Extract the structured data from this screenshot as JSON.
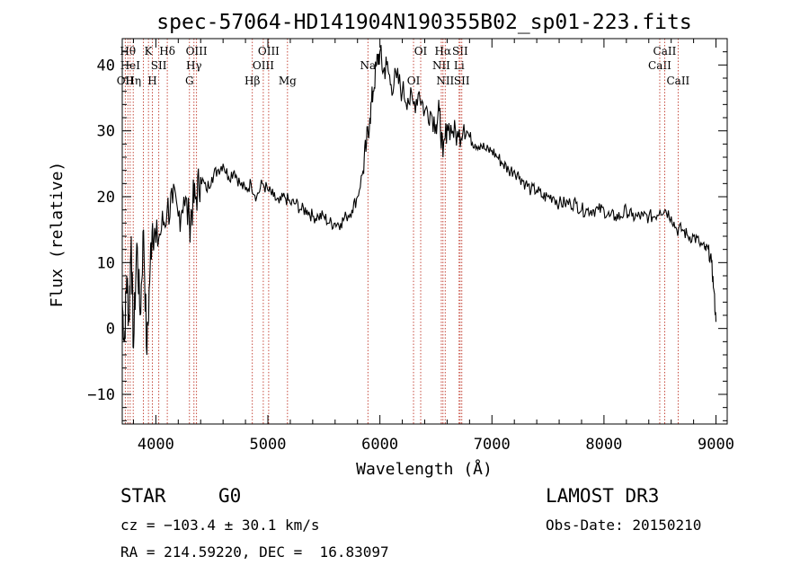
{
  "chart_data": {
    "type": "line",
    "title": "spec-57064-HD141904N190355B02_sp01-223.fits",
    "xlabel": "Wavelength (Å)",
    "ylabel": "Flux (relative)",
    "xlim": [
      3700,
      9100
    ],
    "ylim": [
      -14.5,
      44
    ],
    "xticks": [
      4000,
      5000,
      6000,
      7000,
      8000,
      9000
    ],
    "yticks": [
      -10,
      0,
      10,
      20,
      30,
      40
    ],
    "series": [
      {
        "name": "flux",
        "x": [
          3700,
          3720,
          3740,
          3760,
          3780,
          3800,
          3830,
          3860,
          3890,
          3920,
          3950,
          3970,
          4000,
          4050,
          4100,
          4150,
          4200,
          4250,
          4300,
          4330,
          4360,
          4400,
          4450,
          4500,
          4550,
          4600,
          4650,
          4700,
          4750,
          4800,
          4850,
          4900,
          4950,
          5000,
          5050,
          5100,
          5150,
          5200,
          5250,
          5300,
          5350,
          5400,
          5450,
          5500,
          5550,
          5600,
          5650,
          5700,
          5750,
          5800,
          5850,
          5880,
          5910,
          5940,
          5970,
          6000,
          6030,
          6060,
          6100,
          6150,
          6200,
          6250,
          6300,
          6350,
          6400,
          6450,
          6500,
          6530,
          6563,
          6600,
          6650,
          6700,
          6750,
          6800,
          6850,
          6900,
          6950,
          7000,
          7050,
          7100,
          7150,
          7200,
          7250,
          7300,
          7350,
          7400,
          7450,
          7500,
          7550,
          7600,
          7650,
          7700,
          7750,
          7800,
          7850,
          7900,
          7950,
          8000,
          8050,
          8100,
          8150,
          8200,
          8250,
          8300,
          8350,
          8400,
          8450,
          8500,
          8550,
          8600,
          8650,
          8700,
          8750,
          8800,
          8850,
          8900,
          8930,
          8960,
          8980,
          9000
        ],
        "y": [
          4,
          -2,
          8,
          1,
          14,
          -3,
          13,
          2,
          15,
          -4,
          10,
          16,
          13,
          15,
          18,
          19,
          17,
          20,
          16,
          19,
          20,
          23,
          21,
          23,
          24,
          25,
          23,
          24,
          22,
          21,
          22,
          20,
          22,
          21,
          20,
          19,
          20,
          19,
          19,
          18,
          18,
          17,
          17,
          17,
          16,
          16,
          16,
          17,
          18,
          20,
          24,
          28,
          32,
          36,
          40,
          42,
          39,
          40,
          37,
          38,
          36,
          35,
          34,
          36,
          33,
          33,
          31,
          33,
          26,
          31,
          30,
          29,
          31,
          29,
          28,
          28,
          27,
          27,
          26,
          25,
          24,
          24,
          23,
          22,
          21,
          21,
          20,
          20,
          20,
          19,
          19,
          19,
          19,
          18,
          18,
          18,
          18,
          18,
          17,
          17,
          17,
          18,
          17,
          17,
          17,
          17,
          17,
          18,
          18,
          17,
          15,
          15,
          14,
          14,
          13,
          12,
          12,
          10,
          6,
          1
        ]
      }
    ],
    "lines": [
      {
        "x": 3750,
        "label": "Hθ",
        "row": 1
      },
      {
        "x": 3771,
        "label": "HeI",
        "row": 2
      },
      {
        "x": 3727,
        "label": "OII",
        "row": 3
      },
      {
        "x": 3798,
        "label": "Hη",
        "row": 3
      },
      {
        "x": 3889,
        "label": "",
        "row": 0
      },
      {
        "x": 3934,
        "label": "K",
        "row": 1
      },
      {
        "x": 3969,
        "label": "H",
        "row": 3
      },
      {
        "x": 4026,
        "label": "SII",
        "row": 2
      },
      {
        "x": 4102,
        "label": "Hδ",
        "row": 1
      },
      {
        "x": 4300,
        "label": "G",
        "row": 3
      },
      {
        "x": 4340,
        "label": "Hγ",
        "row": 2
      },
      {
        "x": 4363,
        "label": "OIII",
        "row": 1
      },
      {
        "x": 4861,
        "label": "Hβ",
        "row": 3
      },
      {
        "x": 4959,
        "label": "OIII",
        "row": 2
      },
      {
        "x": 5007,
        "label": "OIII",
        "row": 1
      },
      {
        "x": 5175,
        "label": "Mg",
        "row": 3
      },
      {
        "x": 5893,
        "label": "Na",
        "row": 2
      },
      {
        "x": 6300,
        "label": "OI",
        "row": 3
      },
      {
        "x": 6364,
        "label": "OI",
        "row": 1
      },
      {
        "x": 6548,
        "label": "NII",
        "row": 2
      },
      {
        "x": 6563,
        "label": "Hα",
        "row": 1
      },
      {
        "x": 6583,
        "label": "NII",
        "row": 3
      },
      {
        "x": 6707,
        "label": "Li",
        "row": 2
      },
      {
        "x": 6716,
        "label": "SII",
        "row": 1
      },
      {
        "x": 6731,
        "label": "SII",
        "row": 3
      },
      {
        "x": 8498,
        "label": "CaII",
        "row": 2
      },
      {
        "x": 8542,
        "label": "CaII",
        "row": 1
      },
      {
        "x": 8662,
        "label": "CaII",
        "row": 3
      }
    ]
  },
  "info": {
    "class": "STAR",
    "subclass": "G0",
    "survey": "LAMOST DR3",
    "cz": "cz = −103.4 ± 30.1 km/s",
    "obs_date": "Obs-Date: 20150210",
    "radec": "RA = 214.59220, DEC =  16.83097"
  }
}
